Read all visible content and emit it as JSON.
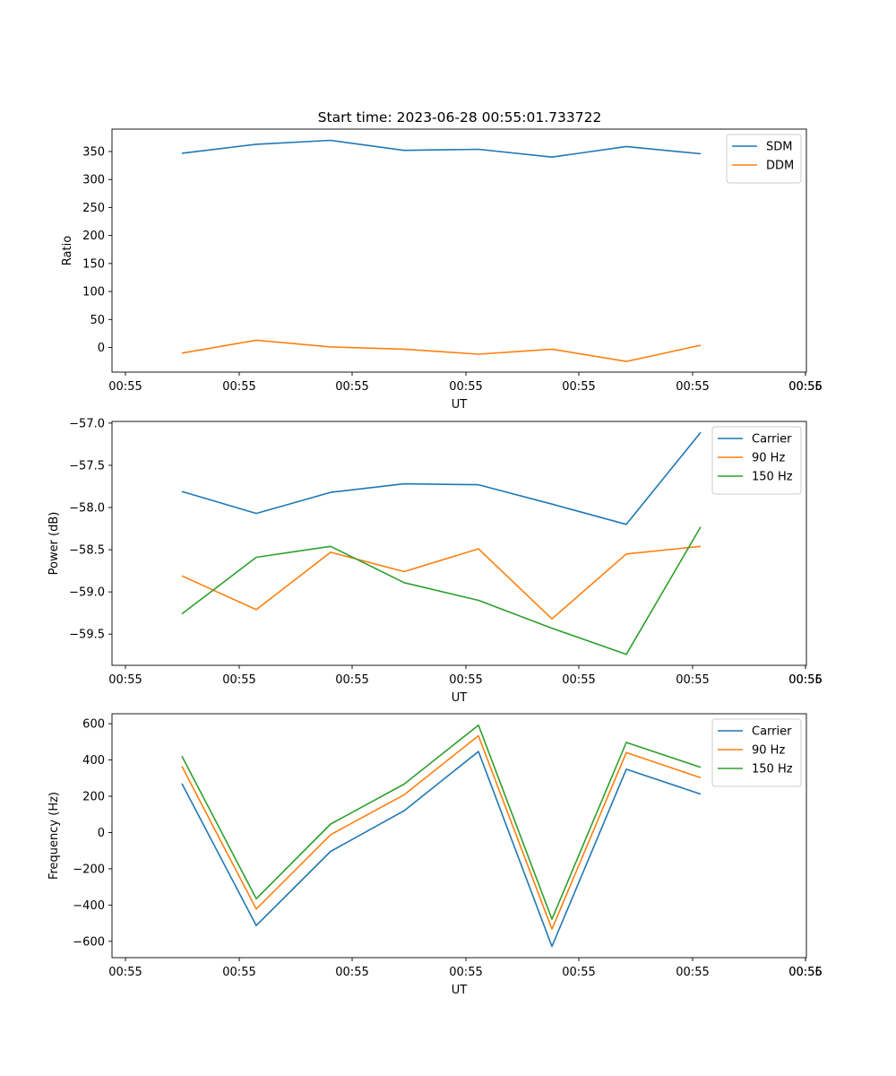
{
  "figure_title": "Start time: 2023-06-28 00:55:01.733722",
  "chart_data": [
    {
      "type": "line",
      "title": "Start time: 2023-06-28 00:55:01.733722",
      "xlabel": "UT",
      "ylabel": "Ratio",
      "x_tick_labels": [
        "00:55",
        "00:55",
        "00:55",
        "00:55",
        "00:55",
        "00:55",
        "00:55",
        "00:56"
      ],
      "ylim": [
        -44,
        390
      ],
      "y_ticks": [
        0,
        50,
        100,
        150,
        200,
        250,
        300,
        350
      ],
      "legend_position": "top-right",
      "grid": false,
      "series": [
        {
          "name": "SDM",
          "color": "#1f77b4",
          "values": [
            347,
            363,
            370,
            352,
            354,
            340,
            359,
            346
          ]
        },
        {
          "name": "DDM",
          "color": "#ff7f0e",
          "values": [
            -10,
            13,
            1,
            -3,
            -12,
            -3,
            -25,
            4
          ]
        }
      ]
    },
    {
      "type": "line",
      "title": "",
      "xlabel": "UT",
      "ylabel": "Power (dB)",
      "x_tick_labels": [
        "00:55",
        "00:55",
        "00:55",
        "00:55",
        "00:55",
        "00:55",
        "00:55",
        "00:56"
      ],
      "ylim": [
        -59.87,
        -56.98
      ],
      "y_ticks": [
        -59.5,
        -59.0,
        -58.5,
        -58.0,
        -57.5,
        -57.0
      ],
      "y_tick_labels": [
        "−59.5",
        "−59.0",
        "−58.5",
        "−58.0",
        "−57.5",
        "−57.0"
      ],
      "legend_position": "top-right",
      "grid": false,
      "series": [
        {
          "name": "Carrier",
          "color": "#1f77b4",
          "values": [
            -57.81,
            -58.07,
            -57.82,
            -57.72,
            -57.73,
            -57.96,
            -58.2,
            -57.11
          ]
        },
        {
          "name": "90 Hz",
          "color": "#ff7f0e",
          "values": [
            -58.81,
            -59.21,
            -58.53,
            -58.76,
            -58.49,
            -59.32,
            -58.55,
            -58.46
          ]
        },
        {
          "name": "150 Hz",
          "color": "#2ca02c",
          "values": [
            -59.26,
            -58.59,
            -58.46,
            -58.89,
            -59.1,
            -59.43,
            -59.74,
            -58.23
          ]
        }
      ]
    },
    {
      "type": "line",
      "title": "",
      "xlabel": "UT",
      "ylabel": "Frequency (Hz)",
      "x_tick_labels": [
        "00:55",
        "00:55",
        "00:55",
        "00:55",
        "00:55",
        "00:55",
        "00:55",
        "00:56"
      ],
      "ylim": [
        -690,
        655
      ],
      "y_ticks": [
        -600,
        -400,
        -200,
        0,
        200,
        400,
        600
      ],
      "y_tick_labels": [
        "−600",
        "−400",
        "−200",
        "0",
        "200",
        "400",
        "600"
      ],
      "legend_position": "top-right",
      "grid": false,
      "series": [
        {
          "name": "Carrier",
          "color": "#1f77b4",
          "values": [
            270,
            -513,
            -104,
            120,
            447,
            -628,
            349,
            212
          ]
        },
        {
          "name": "90 Hz",
          "color": "#ff7f0e",
          "values": [
            365,
            -422,
            -12,
            208,
            534,
            -533,
            441,
            302
          ]
        },
        {
          "name": "150 Hz",
          "color": "#2ca02c",
          "values": [
            421,
            -365,
            47,
            267,
            592,
            -478,
            497,
            360
          ]
        }
      ]
    }
  ]
}
